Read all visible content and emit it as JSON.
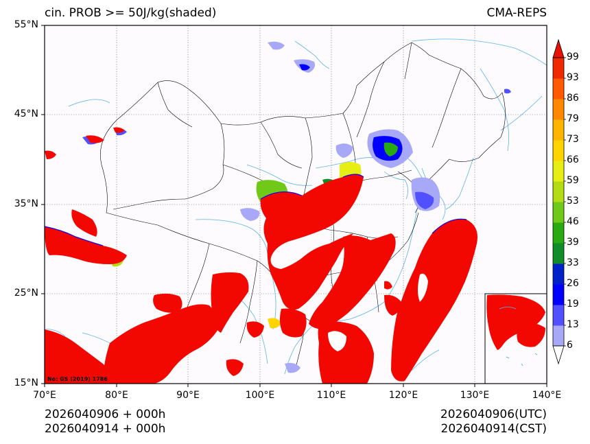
{
  "header": {
    "title_left": "cin. PROB >= 50J/kg(shaded)",
    "title_right": "CMA-REPS"
  },
  "axes": {
    "lat_labels": [
      "55°N",
      "45°N",
      "35°N",
      "25°N",
      "15°N"
    ],
    "lon_labels": [
      "70°E",
      "80°E",
      "90°E",
      "100°E",
      "110°E",
      "120°E",
      "130°E",
      "140°E"
    ]
  },
  "map": {
    "stamp": "No: GS (2019) 1786"
  },
  "colorbar": {
    "ticks": [
      "6",
      "13",
      "19",
      "26",
      "33",
      "39",
      "46",
      "53",
      "59",
      "66",
      "73",
      "79",
      "86",
      "93",
      "99"
    ],
    "colors": [
      "#a8a8f8",
      "#5050ff",
      "#0000ff",
      "#0020c8",
      "#108c28",
      "#28aa10",
      "#70c818",
      "#b4dc14",
      "#e6ee14",
      "#ffd400",
      "#ffb400",
      "#ff8800",
      "#ff5a00",
      "#f02800"
    ],
    "over_color": "#e81000",
    "under_color": "#ffffff"
  },
  "footer": {
    "left_line1": "2026040906  +  000h",
    "left_line2": "2026040914  +  000h",
    "right_line1": "2026040906(UTC)",
    "right_line2": "2026040914(CST)"
  }
}
